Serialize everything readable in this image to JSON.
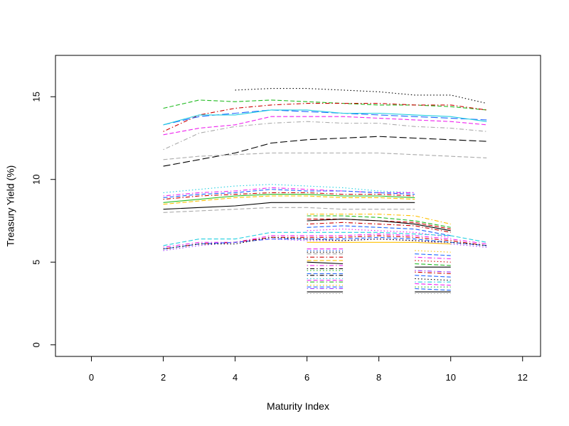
{
  "chart_data": {
    "type": "line",
    "title": "",
    "xlabel": "Maturity Index",
    "ylabel": "Treasury Yield (%)",
    "xlim": [
      -1,
      12.5
    ],
    "ylim": [
      -0.7,
      17.5
    ],
    "x_ticks": [
      0,
      2,
      4,
      6,
      8,
      10,
      12
    ],
    "y_ticks": [
      0,
      5,
      10,
      15
    ],
    "grid": false,
    "legend": "none",
    "series": [
      {
        "x": [
          4,
          5,
          6,
          7,
          8,
          9,
          10,
          11
        ],
        "values": [
          15.4,
          15.5,
          15.5,
          15.4,
          15.3,
          15.1,
          15.1,
          14.6
        ],
        "color": "#000000",
        "dash": "dotted"
      },
      {
        "x": [
          2,
          3,
          4,
          5,
          6,
          7,
          8,
          9,
          10,
          11
        ],
        "values": [
          14.3,
          14.8,
          14.7,
          14.8,
          14.7,
          14.6,
          14.5,
          14.5,
          14.4,
          14.2
        ],
        "color": "#22bb22",
        "dash": "dashed"
      },
      {
        "x": [
          2,
          3,
          4,
          5,
          6,
          7,
          8,
          9,
          10,
          11
        ],
        "values": [
          12.9,
          13.9,
          14.3,
          14.5,
          14.6,
          14.6,
          14.6,
          14.5,
          14.5,
          14.2
        ],
        "color": "#cc0000",
        "dash": "dotdash"
      },
      {
        "x": [
          2,
          3,
          4,
          5,
          6,
          7,
          8,
          9,
          10,
          11
        ],
        "values": [
          13.3,
          13.8,
          14.0,
          14.2,
          14.1,
          14.0,
          13.9,
          13.8,
          13.7,
          13.6
        ],
        "color": "#1e66ff",
        "dash": "longdash"
      },
      {
        "x": [
          2,
          3,
          4,
          5,
          6,
          7,
          8,
          9,
          10,
          11
        ],
        "values": [
          13.3,
          13.9,
          13.9,
          14.2,
          14.2,
          14.0,
          14.0,
          13.9,
          13.8,
          13.5
        ],
        "color": "#22cfe0",
        "dash": "solid"
      },
      {
        "x": [
          2,
          3,
          4,
          5,
          6,
          7,
          8,
          9,
          10,
          11
        ],
        "values": [
          12.7,
          13.1,
          13.3,
          13.8,
          13.8,
          13.8,
          13.7,
          13.6,
          13.5,
          13.3
        ],
        "color": "#ee22ee",
        "dash": "dashed"
      },
      {
        "x": [
          2,
          3,
          4,
          5,
          6,
          7,
          8,
          9,
          10,
          11
        ],
        "values": [
          11.8,
          12.8,
          13.2,
          13.4,
          13.5,
          13.4,
          13.4,
          13.2,
          13.1,
          12.9
        ],
        "color": "#aaaaaa",
        "dash": "dotdash"
      },
      {
        "x": [
          2,
          3,
          4,
          5,
          6,
          7,
          8,
          9,
          10,
          11
        ],
        "values": [
          10.8,
          11.2,
          11.6,
          12.2,
          12.4,
          12.5,
          12.6,
          12.5,
          12.4,
          12.3
        ],
        "color": "#000000",
        "dash": "longdash"
      },
      {
        "x": [
          2,
          3,
          4,
          5,
          6,
          7,
          8,
          9,
          10,
          11
        ],
        "values": [
          11.2,
          11.4,
          11.5,
          11.6,
          11.6,
          11.6,
          11.6,
          11.5,
          11.4,
          11.3
        ],
        "color": "#aaaaaa",
        "dash": "dashed"
      },
      {
        "x": [
          2,
          3,
          4,
          5,
          6,
          7,
          8,
          9
        ],
        "values": [
          9.2,
          9.4,
          9.6,
          9.7,
          9.6,
          9.5,
          9.3,
          9.2
        ],
        "color": "#22cfe0",
        "dash": "dotted"
      },
      {
        "x": [
          2,
          3,
          4,
          5,
          6,
          7,
          8,
          9
        ],
        "values": [
          9.0,
          9.2,
          9.3,
          9.5,
          9.4,
          9.3,
          9.2,
          9.2
        ],
        "color": "#ee22ee",
        "dash": "dotdash"
      },
      {
        "x": [
          2,
          3,
          4,
          5,
          6,
          7,
          8,
          9
        ],
        "values": [
          8.9,
          9.1,
          9.2,
          9.4,
          9.3,
          9.3,
          9.2,
          9.1
        ],
        "color": "#1e66ff",
        "dash": "dashed"
      },
      {
        "x": [
          2,
          3,
          4,
          5,
          6,
          7,
          8,
          9
        ],
        "values": [
          8.8,
          9.0,
          9.1,
          9.2,
          9.2,
          9.1,
          9.1,
          9.0
        ],
        "color": "#cc0000",
        "dash": "dotdash"
      },
      {
        "x": [
          2,
          3,
          4,
          5,
          6,
          7,
          8,
          9
        ],
        "values": [
          8.6,
          8.8,
          9.0,
          9.1,
          9.1,
          9.0,
          9.0,
          8.9
        ],
        "color": "#22bb22",
        "dash": "solid"
      },
      {
        "x": [
          2,
          3,
          4,
          5,
          6,
          7,
          8,
          9
        ],
        "values": [
          8.5,
          8.7,
          8.9,
          9.0,
          9.0,
          8.9,
          8.9,
          8.8
        ],
        "color": "#ffc000",
        "dash": "dashed"
      },
      {
        "x": [
          2,
          3,
          4,
          5,
          6,
          7,
          8,
          9
        ],
        "values": [
          8.2,
          8.3,
          8.4,
          8.6,
          8.6,
          8.6,
          8.6,
          8.6
        ],
        "color": "#000000",
        "dash": "solid"
      },
      {
        "x": [
          2,
          3,
          4,
          5,
          6,
          7,
          8,
          9
        ],
        "values": [
          8.0,
          8.1,
          8.2,
          8.3,
          8.3,
          8.2,
          8.2,
          8.2
        ],
        "color": "#aaaaaa",
        "dash": "dashed"
      },
      {
        "x": [
          6,
          7,
          8,
          9,
          10
        ],
        "values": [
          7.9,
          7.9,
          7.9,
          7.8,
          7.3
        ],
        "color": "#ffc000",
        "dash": "dotdash"
      },
      {
        "x": [
          6,
          7,
          8,
          9,
          10
        ],
        "values": [
          7.8,
          7.8,
          7.7,
          7.5,
          7.1
        ],
        "color": "#22bb22",
        "dash": "dashed"
      },
      {
        "x": [
          6,
          7,
          8,
          9,
          10
        ],
        "values": [
          7.6,
          7.6,
          7.5,
          7.4,
          7.0
        ],
        "color": "#cc0000",
        "dash": "dashed"
      },
      {
        "x": [
          6,
          7,
          8,
          9,
          10
        ],
        "values": [
          7.5,
          7.6,
          7.5,
          7.3,
          6.9
        ],
        "color": "#000000",
        "dash": "solid"
      },
      {
        "x": [
          6,
          7,
          8,
          9,
          10
        ],
        "values": [
          7.3,
          7.4,
          7.3,
          7.2,
          6.8
        ],
        "color": "#cc0000",
        "dash": "dotdash"
      },
      {
        "x": [
          6,
          7,
          8,
          9,
          10
        ],
        "values": [
          7.1,
          7.2,
          7.1,
          7.0,
          6.6
        ],
        "color": "#1e66ff",
        "dash": "dashed"
      },
      {
        "x": [
          6,
          7,
          8,
          9,
          10
        ],
        "values": [
          6.9,
          7.0,
          6.9,
          6.8,
          6.5
        ],
        "color": "#ee22ee",
        "dash": "dotted"
      },
      {
        "x": [
          2,
          3,
          4,
          5,
          6,
          7,
          8,
          9,
          10,
          11
        ],
        "values": [
          6.0,
          6.4,
          6.4,
          6.8,
          6.8,
          6.8,
          6.8,
          6.7,
          6.6,
          6.2
        ],
        "color": "#22cfe0",
        "dash": "dashed"
      },
      {
        "x": [
          2,
          3,
          4,
          5,
          6,
          7,
          8,
          9,
          10,
          11
        ],
        "values": [
          5.9,
          6.2,
          6.2,
          6.6,
          6.6,
          6.6,
          6.7,
          6.6,
          6.4,
          6.1
        ],
        "color": "#ee22ee",
        "dash": "dotdash"
      },
      {
        "x": [
          2,
          3,
          4,
          5,
          6,
          7,
          8,
          9,
          10,
          11
        ],
        "values": [
          5.8,
          6.1,
          6.2,
          6.5,
          6.5,
          6.5,
          6.6,
          6.5,
          6.3,
          6.0
        ],
        "color": "#cc0000",
        "dash": "dotdash"
      },
      {
        "x": [
          2,
          3,
          4,
          5,
          6,
          7,
          8,
          9,
          10,
          11
        ],
        "values": [
          5.8,
          6.1,
          6.2,
          6.4,
          6.4,
          6.4,
          6.5,
          6.4,
          6.2,
          6.0
        ],
        "color": "#1e66ff",
        "dash": "dashed"
      },
      {
        "x": [
          2,
          3,
          4,
          5,
          6,
          7,
          8,
          9,
          10,
          11
        ],
        "values": [
          5.7,
          6.0,
          6.2,
          6.4,
          6.3,
          6.3,
          6.4,
          6.3,
          6.1,
          5.9
        ],
        "color": "#9933ff",
        "dash": "dotted"
      },
      {
        "x": [
          2,
          3,
          4,
          5,
          6,
          7,
          8,
          9,
          10,
          11
        ],
        "values": [
          5.8,
          6.1,
          6.1,
          6.5,
          6.4,
          6.3,
          6.4,
          6.3,
          6.2,
          6.0
        ],
        "color": "#000000",
        "dash": "dotted"
      },
      {
        "x": [
          6,
          7,
          8,
          9,
          10
        ],
        "values": [
          6.2,
          6.2,
          6.2,
          6.2,
          6.1
        ],
        "color": "#ffc000",
        "dash": "solid"
      },
      {
        "x": [
          6,
          7
        ],
        "values": [
          5.8,
          5.8
        ],
        "color": "#ee22ee",
        "dash": "dashed"
      },
      {
        "x": [
          6,
          7
        ],
        "values": [
          5.7,
          5.7
        ],
        "color": "#1e66ff",
        "dash": "dotted"
      },
      {
        "x": [
          6,
          7
        ],
        "values": [
          5.6,
          5.6
        ],
        "color": "#000000",
        "dash": "dotted"
      },
      {
        "x": [
          6,
          7
        ],
        "values": [
          5.5,
          5.5
        ],
        "color": "#aaaaaa",
        "dash": "dashed"
      },
      {
        "x": [
          6,
          7
        ],
        "values": [
          5.3,
          5.3
        ],
        "color": "#cc0000",
        "dash": "dotdash"
      },
      {
        "x": [
          6,
          7
        ],
        "values": [
          5.1,
          5.1
        ],
        "color": "#ffc000",
        "dash": "dashed"
      },
      {
        "x": [
          6,
          7
        ],
        "values": [
          5.0,
          4.9
        ],
        "color": "#000000",
        "dash": "solid"
      },
      {
        "x": [
          6,
          7
        ],
        "values": [
          4.8,
          4.8
        ],
        "color": "#ee22ee",
        "dash": "dotdash"
      },
      {
        "x": [
          6,
          7
        ],
        "values": [
          4.6,
          4.6
        ],
        "color": "#000000",
        "dash": "dotdash"
      },
      {
        "x": [
          6,
          7
        ],
        "values": [
          4.5,
          4.5
        ],
        "color": "#22bb22",
        "dash": "dotted"
      },
      {
        "x": [
          6,
          7
        ],
        "values": [
          4.3,
          4.3
        ],
        "color": "#1e66ff",
        "dash": "dashed"
      },
      {
        "x": [
          6,
          7
        ],
        "values": [
          4.2,
          4.2
        ],
        "color": "#000000",
        "dash": "dotdash"
      },
      {
        "x": [
          6,
          7
        ],
        "values": [
          4.0,
          4.0
        ],
        "color": "#22cfe0",
        "dash": "dotted"
      },
      {
        "x": [
          6,
          7
        ],
        "values": [
          3.9,
          3.9
        ],
        "color": "#ee22ee",
        "dash": "dashed"
      },
      {
        "x": [
          6,
          7
        ],
        "values": [
          3.8,
          3.8
        ],
        "color": "#22bb22",
        "dash": "dotdash"
      },
      {
        "x": [
          6,
          7
        ],
        "values": [
          3.6,
          3.6
        ],
        "color": "#ffc000",
        "dash": "dotted"
      },
      {
        "x": [
          6,
          7
        ],
        "values": [
          3.5,
          3.5
        ],
        "color": "#1e66ff",
        "dash": "dashed"
      },
      {
        "x": [
          6,
          7
        ],
        "values": [
          3.4,
          3.4
        ],
        "color": "#9933ff",
        "dash": "dotdash"
      },
      {
        "x": [
          6,
          7
        ],
        "values": [
          3.2,
          3.2
        ],
        "color": "#000000",
        "dash": "solid"
      },
      {
        "x": [
          6,
          7
        ],
        "values": [
          3.1,
          3.1
        ],
        "color": "#aaaaaa",
        "dash": "dotted"
      },
      {
        "x": [
          9,
          10
        ],
        "values": [
          5.7,
          5.6
        ],
        "color": "#ffc000",
        "dash": "dotted"
      },
      {
        "x": [
          9,
          10
        ],
        "values": [
          5.5,
          5.4
        ],
        "color": "#1e66ff",
        "dash": "dashed"
      },
      {
        "x": [
          9,
          10
        ],
        "values": [
          5.3,
          5.2
        ],
        "color": "#ee22ee",
        "dash": "dotdash"
      },
      {
        "x": [
          9,
          10
        ],
        "values": [
          5.1,
          5.0
        ],
        "color": "#cc0000",
        "dash": "dotted"
      },
      {
        "x": [
          9,
          10
        ],
        "values": [
          4.9,
          4.8
        ],
        "color": "#22bb22",
        "dash": "dashed"
      },
      {
        "x": [
          9,
          10
        ],
        "values": [
          4.7,
          4.7
        ],
        "color": "#000000",
        "dash": "solid"
      },
      {
        "x": [
          9,
          10
        ],
        "values": [
          4.5,
          4.4
        ],
        "color": "#9933ff",
        "dash": "dotdash"
      },
      {
        "x": [
          9,
          10
        ],
        "values": [
          4.4,
          4.3
        ],
        "color": "#cc0000",
        "dash": "dotdash"
      },
      {
        "x": [
          9,
          10
        ],
        "values": [
          4.2,
          4.1
        ],
        "color": "#1e66ff",
        "dash": "dashed"
      },
      {
        "x": [
          9,
          10
        ],
        "values": [
          4.0,
          3.9
        ],
        "color": "#000000",
        "dash": "dotted"
      },
      {
        "x": [
          9,
          10
        ],
        "values": [
          3.8,
          3.8
        ],
        "color": "#22cfe0",
        "dash": "dotdash"
      },
      {
        "x": [
          9,
          10
        ],
        "values": [
          3.7,
          3.6
        ],
        "color": "#ee22ee",
        "dash": "dashed"
      },
      {
        "x": [
          9,
          10
        ],
        "values": [
          3.5,
          3.5
        ],
        "color": "#22bb22",
        "dash": "dotted"
      },
      {
        "x": [
          9,
          10
        ],
        "values": [
          3.4,
          3.3
        ],
        "color": "#1e66ff",
        "dash": "dashed"
      },
      {
        "x": [
          9,
          10
        ],
        "values": [
          3.2,
          3.2
        ],
        "color": "#000000",
        "dash": "solid"
      },
      {
        "x": [
          9,
          10
        ],
        "values": [
          3.1,
          3.1
        ],
        "color": "#aaaaaa",
        "dash": "dotted"
      }
    ]
  }
}
